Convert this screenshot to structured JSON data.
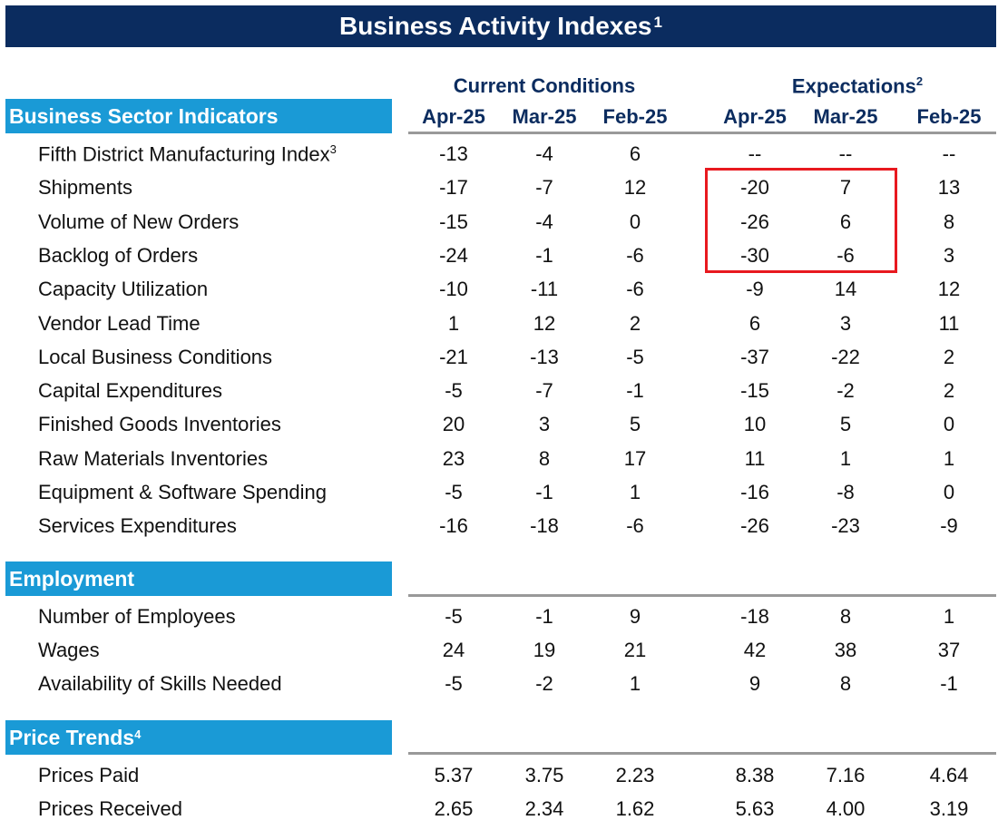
{
  "title": "Business Activity Indexes",
  "title_sup": "1",
  "groups": {
    "current": "Current Conditions",
    "expectations": "Expectations",
    "expectations_sup": "2"
  },
  "columns": [
    "Apr-25",
    "Mar-25",
    "Feb-25",
    "Apr-25",
    "Mar-25",
    "Feb-25"
  ],
  "sections": {
    "business": {
      "title": "Business Sector Indicators"
    },
    "employment": {
      "title": "Employment"
    },
    "prices": {
      "title": "Price Trends",
      "sup": "4"
    }
  },
  "business_rows": [
    {
      "label": "Fifth District Manufacturing Index",
      "sup": "3",
      "values": [
        "-13",
        "-4",
        "6",
        "--",
        "--",
        "--"
      ]
    },
    {
      "label": "Shipments",
      "values": [
        "-17",
        "-7",
        "12",
        "-20",
        "7",
        "13"
      ]
    },
    {
      "label": "Volume of New Orders",
      "values": [
        "-15",
        "-4",
        "0",
        "-26",
        "6",
        "8"
      ]
    },
    {
      "label": "Backlog of Orders",
      "values": [
        "-24",
        "-1",
        "-6",
        "-30",
        "-6",
        "3"
      ]
    },
    {
      "label": "Capacity Utilization",
      "values": [
        "-10",
        "-11",
        "-6",
        "-9",
        "14",
        "12"
      ]
    },
    {
      "label": "Vendor Lead Time",
      "values": [
        "1",
        "12",
        "2",
        "6",
        "3",
        "11"
      ]
    },
    {
      "label": "Local Business Conditions",
      "values": [
        "-21",
        "-13",
        "-5",
        "-37",
        "-22",
        "2"
      ]
    },
    {
      "label": "Capital Expenditures",
      "values": [
        "-5",
        "-7",
        "-1",
        "-15",
        "-2",
        "2"
      ]
    },
    {
      "label": "Finished Goods Inventories",
      "values": [
        "20",
        "3",
        "5",
        "10",
        "5",
        "0"
      ]
    },
    {
      "label": "Raw Materials Inventories",
      "values": [
        "23",
        "8",
        "17",
        "11",
        "1",
        "1"
      ]
    },
    {
      "label": "Equipment & Software Spending",
      "values": [
        "-5",
        "-1",
        "1",
        "-16",
        "-8",
        "0"
      ]
    },
    {
      "label": "Services Expenditures",
      "values": [
        "-16",
        "-18",
        "-6",
        "-26",
        "-23",
        "-9"
      ]
    }
  ],
  "employment_rows": [
    {
      "label": "Number of Employees",
      "values": [
        "-5",
        "-1",
        "9",
        "-18",
        "8",
        "1"
      ]
    },
    {
      "label": "Wages",
      "values": [
        "24",
        "19",
        "21",
        "42",
        "38",
        "37"
      ]
    },
    {
      "label": "Availability of Skills Needed",
      "values": [
        "-5",
        "-2",
        "1",
        "9",
        "8",
        "-1"
      ]
    }
  ],
  "price_rows": [
    {
      "label": "Prices Paid",
      "values": [
        "5.37",
        "3.75",
        "2.23",
        "8.38",
        "7.16",
        "4.64"
      ]
    },
    {
      "label": "Prices Received",
      "values": [
        "2.65",
        "2.34",
        "1.62",
        "5.63",
        "4.00",
        "3.19"
      ]
    }
  ],
  "colors": {
    "title_bg": "#0b2c5f",
    "section_bg": "#1a9ad6",
    "header_text": "#0b2c5f",
    "highlight": "#e8191f"
  }
}
